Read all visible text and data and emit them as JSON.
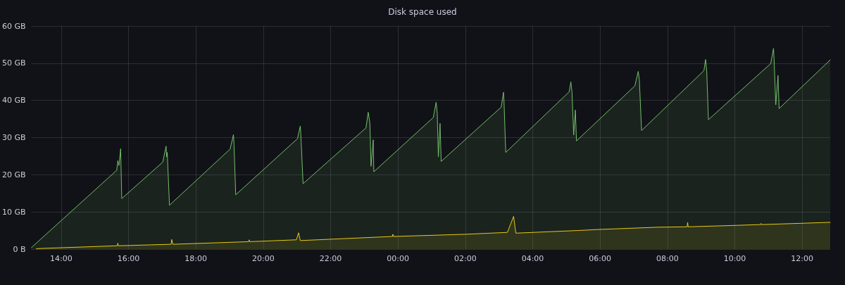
{
  "chart_data": {
    "type": "area",
    "title": "Disk space used",
    "xlim": [
      "--01-01T13:07",
      "--01-02T12:50"
    ],
    "ylim": [
      0,
      60
    ],
    "xticks": [
      {
        "value": "--01-01T14:00",
        "label": "14:00"
      },
      {
        "value": "--01-01T16:00",
        "label": "16:00"
      },
      {
        "value": "--01-01T18:00",
        "label": "18:00"
      },
      {
        "value": "--01-01T20:00",
        "label": "20:00"
      },
      {
        "value": "--01-01T22:00",
        "label": "22:00"
      },
      {
        "value": "--01-02T00:00",
        "label": "00:00"
      },
      {
        "value": "--01-02T02:00",
        "label": "02:00"
      },
      {
        "value": "--01-02T04:00",
        "label": "04:00"
      },
      {
        "value": "--01-02T06:00",
        "label": "06:00"
      },
      {
        "value": "--01-02T08:00",
        "label": "08:00"
      },
      {
        "value": "--01-02T10:00",
        "label": "10:00"
      },
      {
        "value": "--01-02T12:00",
        "label": "12:00"
      }
    ],
    "yticks": [
      {
        "value": 0,
        "label": "0 B"
      },
      {
        "value": 10,
        "label": "10 GB"
      },
      {
        "value": 20,
        "label": "20 GB"
      },
      {
        "value": 30,
        "label": "30 GB"
      },
      {
        "value": 40,
        "label": "40 GB"
      },
      {
        "value": 50,
        "label": "50 GB"
      },
      {
        "value": 60,
        "label": "60 GB"
      }
    ],
    "grid": true,
    "marker": "none",
    "line_style": "solid",
    "series": [
      {
        "color": "#73bf69",
        "x": [
          "--01-01T13:07",
          "--01-01T15:39",
          "--01-01T15:41",
          "--01-01T15:43",
          "--01-01T15:46",
          "--01-01T15:48",
          "--01-01T17:01",
          "--01-01T17:07",
          "--01-01T17:08",
          "--01-01T17:09",
          "--01-01T17:13",
          "--01-01T19:01",
          "--01-01T19:07",
          "--01-01T19:08",
          "--01-01T19:11",
          "--01-01T21:01",
          "--01-01T21:06",
          "--01-01T21:07",
          "--01-01T21:11",
          "--01-01T23:03",
          "--01-01T23:07",
          "--01-01T23:10",
          "--01-01T23:12",
          "--01-01T23:16",
          "--01-01T23:17",
          "--01-02T01:03",
          "--01-02T01:08",
          "--01-02T01:10",
          "--01-02T01:12",
          "--01-02T01:15",
          "--01-02T01:17",
          "--01-02T03:04",
          "--01-02T03:08",
          "--01-02T03:09",
          "--01-02T03:12",
          "--01-02T05:05",
          "--01-02T05:08",
          "--01-02T05:10",
          "--01-02T05:13",
          "--01-02T05:16",
          "--01-02T05:18",
          "--01-02T07:02",
          "--01-02T07:08",
          "--01-02T07:10",
          "--01-02T07:14",
          "--01-02T09:05",
          "--01-02T09:08",
          "--01-02T09:10",
          "--01-02T09:13",
          "--01-02T11:04",
          "--01-02T11:09",
          "--01-02T11:10",
          "--01-02T11:13",
          "--01-02T11:17",
          "--01-02T11:19",
          "--01-02T12:50"
        ],
        "values": [
          0.4,
          21.2,
          23.8,
          22.5,
          27.0,
          13.6,
          23.4,
          27.7,
          24.8,
          26.0,
          11.8,
          26.9,
          30.8,
          28.1,
          14.6,
          29.7,
          33.1,
          30.8,
          17.6,
          32.6,
          36.8,
          33.9,
          22.3,
          29.4,
          20.8,
          35.4,
          39.5,
          36.5,
          24.8,
          33.8,
          23.6,
          38.2,
          42.2,
          39.4,
          26.0,
          42.3,
          45.0,
          42.3,
          30.7,
          37.4,
          29.1,
          43.9,
          47.8,
          45.5,
          31.9,
          48.0,
          51.0,
          48.0,
          34.8,
          49.9,
          54.0,
          51.2,
          38.8,
          46.7,
          37.8,
          50.9
        ]
      },
      {
        "color": "#f2cc0c",
        "x": [
          "--01-01T13:16",
          "--01-01T13:28",
          "--01-01T15:40",
          "--01-01T15:41",
          "--01-01T15:42",
          "--01-01T17:16",
          "--01-01T17:17",
          "--01-01T17:19",
          "--01-01T19:34",
          "--01-01T19:35",
          "--01-01T19:36",
          "--01-01T20:59",
          "--01-01T21:03",
          "--01-01T21:06",
          "--01-01T23:50",
          "--01-01T23:51",
          "--01-01T23:52",
          "--01-02T02:02",
          "--01-02T03:15",
          "--01-02T03:26",
          "--01-02T03:30",
          "--01-02T05:20",
          "--01-02T06:00",
          "--01-02T07:44",
          "--01-02T08:35",
          "--01-02T08:36",
          "--01-02T08:37",
          "--01-02T10:05",
          "--01-02T10:46",
          "--01-02T10:47",
          "--01-02T10:48",
          "--01-02T12:50"
        ],
        "values": [
          0.1,
          0.2,
          0.9,
          1.6,
          0.9,
          1.3,
          2.6,
          1.3,
          2.0,
          2.5,
          2.0,
          2.5,
          4.4,
          2.3,
          3.4,
          4.0,
          3.4,
          4.0,
          4.5,
          8.8,
          4.3,
          5.0,
          5.3,
          5.9,
          6.0,
          7.2,
          6.0,
          6.4,
          6.6,
          6.9,
          6.6,
          7.2
        ]
      }
    ]
  }
}
